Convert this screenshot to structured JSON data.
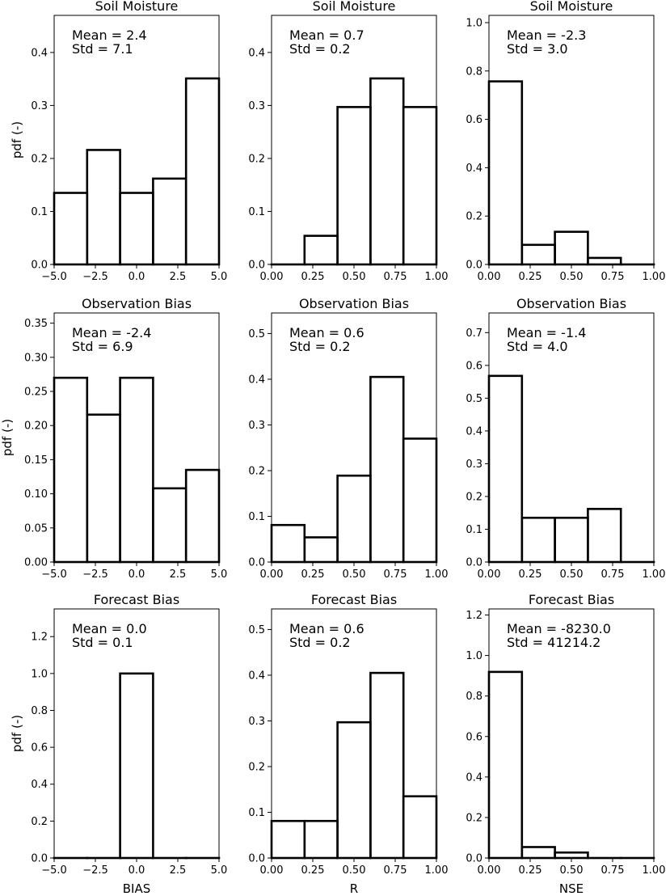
{
  "chart_data": [
    {
      "type": "bar",
      "row": 0,
      "col": 0,
      "title": "Soil Moisture",
      "stats": [
        "Mean = 2.4",
        "Std = 7.1"
      ],
      "xlabel": "",
      "ylabel": "pdf (-)",
      "xlim": [
        -5,
        5
      ],
      "ylim": [
        0,
        0.47
      ],
      "xticks": [
        -5,
        -2.5,
        0,
        2.5,
        5
      ],
      "xtick_labels": [
        "−5.0",
        "−2.5",
        "0.0",
        "2.5",
        "5.0"
      ],
      "yticks": [
        0,
        0.1,
        0.2,
        0.3,
        0.4
      ],
      "ytick_labels": [
        "0.0",
        "0.1",
        "0.2",
        "0.3",
        "0.4"
      ],
      "bin_edges": [
        -5,
        -3,
        -1,
        1,
        3,
        5
      ],
      "values": [
        0.135,
        0.216,
        0.135,
        0.162,
        0.351
      ]
    },
    {
      "type": "bar",
      "row": 0,
      "col": 1,
      "title": "Soil Moisture",
      "stats": [
        "Mean = 0.7",
        "Std = 0.2"
      ],
      "xlabel": "",
      "ylabel": "",
      "xlim": [
        0,
        1
      ],
      "ylim": [
        0,
        0.47
      ],
      "xticks": [
        0,
        0.25,
        0.5,
        0.75,
        1
      ],
      "xtick_labels": [
        "0.00",
        "0.25",
        "0.50",
        "0.75",
        "1.00"
      ],
      "yticks": [
        0,
        0.1,
        0.2,
        0.3,
        0.4
      ],
      "ytick_labels": [
        "0.0",
        "0.1",
        "0.2",
        "0.3",
        "0.4"
      ],
      "bin_edges": [
        0,
        0.2,
        0.4,
        0.6,
        0.8,
        1
      ],
      "values": [
        0,
        0.054,
        0.297,
        0.351,
        0.297
      ]
    },
    {
      "type": "bar",
      "row": 0,
      "col": 2,
      "title": "Soil Moisture",
      "stats": [
        "Mean = -2.3",
        "Std = 3.0"
      ],
      "xlabel": "",
      "ylabel": "",
      "xlim": [
        0,
        1
      ],
      "ylim": [
        0,
        1.03
      ],
      "xticks": [
        0,
        0.25,
        0.5,
        0.75,
        1
      ],
      "xtick_labels": [
        "0.00",
        "0.25",
        "0.50",
        "0.75",
        "1.00"
      ],
      "yticks": [
        0,
        0.2,
        0.4,
        0.6,
        0.8,
        1.0
      ],
      "ytick_labels": [
        "0.0",
        "0.2",
        "0.4",
        "0.6",
        "0.8",
        "1.0"
      ],
      "bin_edges": [
        0,
        0.2,
        0.4,
        0.6,
        0.8,
        1
      ],
      "values": [
        0.757,
        0.081,
        0.135,
        0.027,
        0
      ]
    },
    {
      "type": "bar",
      "row": 1,
      "col": 0,
      "title": "Observation Bias",
      "stats": [
        "Mean = -2.4",
        "Std = 6.9"
      ],
      "xlabel": "",
      "ylabel": "pdf (-)",
      "xlim": [
        -5,
        5
      ],
      "ylim": [
        0,
        0.365
      ],
      "xticks": [
        -5,
        -2.5,
        0,
        2.5,
        5
      ],
      "xtick_labels": [
        "−5.0",
        "−2.5",
        "0.0",
        "2.5",
        "5.0"
      ],
      "yticks": [
        0,
        0.05,
        0.1,
        0.15,
        0.2,
        0.25,
        0.3,
        0.35
      ],
      "ytick_labels": [
        "0.00",
        "0.05",
        "0.10",
        "0.15",
        "0.20",
        "0.25",
        "0.30",
        "0.35"
      ],
      "bin_edges": [
        -5,
        -3,
        -1,
        1,
        3,
        5
      ],
      "values": [
        0.27,
        0.216,
        0.27,
        0.108,
        0.135
      ]
    },
    {
      "type": "bar",
      "row": 1,
      "col": 1,
      "title": "Observation Bias",
      "stats": [
        "Mean = 0.6",
        "Std = 0.2"
      ],
      "xlabel": "",
      "ylabel": "",
      "xlim": [
        0,
        1
      ],
      "ylim": [
        0,
        0.545
      ],
      "xticks": [
        0,
        0.25,
        0.5,
        0.75,
        1
      ],
      "xtick_labels": [
        "0.00",
        "0.25",
        "0.50",
        "0.75",
        "1.00"
      ],
      "yticks": [
        0,
        0.1,
        0.2,
        0.3,
        0.4,
        0.5
      ],
      "ytick_labels": [
        "0.0",
        "0.1",
        "0.2",
        "0.3",
        "0.4",
        "0.5"
      ],
      "bin_edges": [
        0,
        0.2,
        0.4,
        0.6,
        0.8,
        1
      ],
      "values": [
        0.081,
        0.054,
        0.189,
        0.405,
        0.27
      ]
    },
    {
      "type": "bar",
      "row": 1,
      "col": 2,
      "title": "Observation Bias",
      "stats": [
        "Mean = -1.4",
        "Std = 4.0"
      ],
      "xlabel": "",
      "ylabel": "",
      "xlim": [
        0,
        1
      ],
      "ylim": [
        0,
        0.76
      ],
      "xticks": [
        0,
        0.25,
        0.5,
        0.75,
        1
      ],
      "xtick_labels": [
        "0.00",
        "0.25",
        "0.50",
        "0.75",
        "1.00"
      ],
      "yticks": [
        0,
        0.1,
        0.2,
        0.3,
        0.4,
        0.5,
        0.6,
        0.7
      ],
      "ytick_labels": [
        "0.0",
        "0.1",
        "0.2",
        "0.3",
        "0.4",
        "0.5",
        "0.6",
        "0.7"
      ],
      "bin_edges": [
        0,
        0.2,
        0.4,
        0.6,
        0.8,
        1
      ],
      "values": [
        0.568,
        0.135,
        0.135,
        0.162,
        0
      ]
    },
    {
      "type": "bar",
      "row": 2,
      "col": 0,
      "title": "Forecast Bias",
      "stats": [
        "Mean = 0.0",
        "Std = 0.1"
      ],
      "xlabel": "BIAS",
      "ylabel": "pdf (-)",
      "xlim": [
        -5,
        5
      ],
      "ylim": [
        0,
        1.35
      ],
      "xticks": [
        -5,
        -2.5,
        0,
        2.5,
        5
      ],
      "xtick_labels": [
        "−5.0",
        "−2.5",
        "0.0",
        "2.5",
        "5.0"
      ],
      "yticks": [
        0,
        0.2,
        0.4,
        0.6,
        0.8,
        1.0,
        1.2
      ],
      "ytick_labels": [
        "0.0",
        "0.2",
        "0.4",
        "0.6",
        "0.8",
        "1.0",
        "1.2"
      ],
      "bin_edges": [
        -5,
        -3,
        -1,
        1,
        3,
        5
      ],
      "values": [
        0,
        0,
        1.0,
        0,
        0
      ]
    },
    {
      "type": "bar",
      "row": 2,
      "col": 1,
      "title": "Forecast Bias",
      "stats": [
        "Mean = 0.6",
        "Std = 0.2"
      ],
      "xlabel": "R",
      "ylabel": "",
      "xlim": [
        0,
        1
      ],
      "ylim": [
        0,
        0.545
      ],
      "xticks": [
        0,
        0.25,
        0.5,
        0.75,
        1
      ],
      "xtick_labels": [
        "0.00",
        "0.25",
        "0.50",
        "0.75",
        "1.00"
      ],
      "yticks": [
        0,
        0.1,
        0.2,
        0.3,
        0.4,
        0.5
      ],
      "ytick_labels": [
        "0.0",
        "0.1",
        "0.2",
        "0.3",
        "0.4",
        "0.5"
      ],
      "bin_edges": [
        0,
        0.2,
        0.4,
        0.6,
        0.8,
        1
      ],
      "values": [
        0.081,
        0.081,
        0.297,
        0.405,
        0.135
      ]
    },
    {
      "type": "bar",
      "row": 2,
      "col": 2,
      "title": "Forecast Bias",
      "stats": [
        "Mean = -8230.0",
        "Std = 41214.2"
      ],
      "xlabel": "NSE",
      "ylabel": "",
      "xlim": [
        0,
        1
      ],
      "ylim": [
        0,
        1.23
      ],
      "xticks": [
        0,
        0.25,
        0.5,
        0.75,
        1
      ],
      "xtick_labels": [
        "0.00",
        "0.25",
        "0.50",
        "0.75",
        "1.00"
      ],
      "yticks": [
        0,
        0.2,
        0.4,
        0.6,
        0.8,
        1.0,
        1.2
      ],
      "ytick_labels": [
        "0.0",
        "0.2",
        "0.4",
        "0.6",
        "0.8",
        "1.0",
        "1.2"
      ],
      "bin_edges": [
        0,
        0.2,
        0.4,
        0.6,
        0.8,
        1
      ],
      "values": [
        0.919,
        0.054,
        0.027,
        0,
        0
      ]
    }
  ]
}
